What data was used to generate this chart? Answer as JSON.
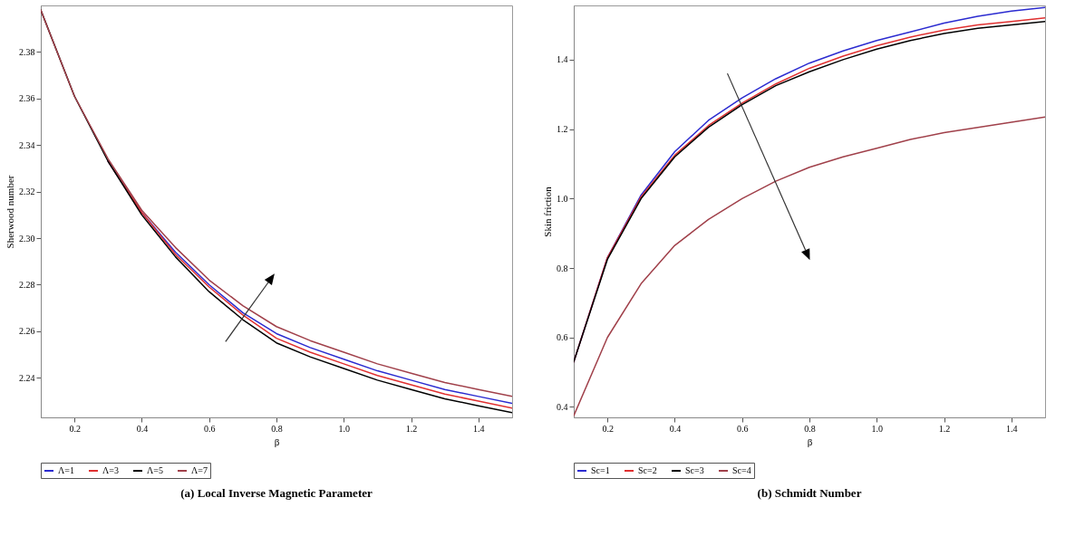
{
  "chart_data": [
    {
      "type": "line",
      "title": "(a) Local Inverse Magnetic Parameter",
      "xlabel": "β",
      "ylabel": "Sherwood number",
      "x": [
        0.1,
        0.2,
        0.3,
        0.4,
        0.5,
        0.6,
        0.7,
        0.8,
        0.9,
        1.0,
        1.1,
        1.2,
        1.3,
        1.4,
        1.5
      ],
      "xlim": [
        0.1,
        1.5
      ],
      "xticks": [
        0.2,
        0.4,
        0.6,
        0.8,
        {
          "value": 1,
          "label": "1.0"
        },
        1.2,
        1.4
      ],
      "ylim": [
        2.223,
        2.4
      ],
      "yticks": [
        2.24,
        2.26,
        2.28,
        {
          "value": 2.3,
          "label": "2.30"
        },
        2.32,
        2.34,
        2.36,
        2.38
      ],
      "legend": "bottom",
      "series": [
        {
          "name": "Λ=1",
          "color": "#2b2bd0",
          "values": [
            null,
            null,
            2.333,
            2.311,
            2.294,
            2.28,
            2.268,
            2.259,
            2.253,
            2.248,
            2.243,
            2.239,
            2.235,
            2.232,
            2.229
          ]
        },
        {
          "name": "Λ=3",
          "color": "#e03030",
          "values": [
            null,
            null,
            2.333,
            2.311,
            2.293,
            2.279,
            2.267,
            2.257,
            2.251,
            2.246,
            2.241,
            2.237,
            2.233,
            2.23,
            2.227
          ]
        },
        {
          "name": "Λ=5",
          "color": "#000000",
          "values": [
            2.398,
            2.361,
            2.333,
            2.31,
            2.292,
            2.277,
            2.265,
            2.255,
            2.249,
            2.244,
            2.239,
            2.235,
            2.231,
            2.228,
            2.225
          ]
        },
        {
          "name": "Λ=7",
          "color": "#a0404a",
          "values": [
            2.398,
            2.361,
            2.334,
            2.312,
            2.296,
            2.282,
            2.271,
            2.262,
            2.256,
            2.251,
            2.246,
            2.242,
            2.238,
            2.235,
            2.232
          ]
        }
      ]
    },
    {
      "type": "line",
      "title": "(b) Schmidt Number",
      "xlabel": "β",
      "ylabel": "Skin friction",
      "x": [
        0.1,
        0.2,
        0.3,
        0.4,
        0.5,
        0.6,
        0.7,
        0.8,
        0.9,
        1.0,
        1.1,
        1.2,
        1.3,
        1.4,
        1.5
      ],
      "xlim": [
        0.1,
        1.5
      ],
      "xticks": [
        0.2,
        0.4,
        0.6,
        0.8,
        {
          "value": 1,
          "label": "1.0"
        },
        1.2,
        1.4
      ],
      "ylim": [
        0.37,
        1.556
      ],
      "yticks": [
        0.4,
        0.6,
        0.8,
        {
          "value": 1,
          "label": "1.0"
        },
        1.2,
        1.4
      ],
      "legend": "bottom",
      "series": [
        {
          "name": "Sc=1",
          "color": "#2b2bd0",
          "values": [
            0.53,
            0.83,
            1.01,
            1.135,
            1.225,
            1.29,
            1.345,
            1.39,
            1.425,
            1.455,
            1.48,
            1.505,
            1.525,
            1.54,
            1.55
          ]
        },
        {
          "name": "Sc=2",
          "color": "#e03030",
          "values": [
            0.53,
            0.83,
            1.005,
            1.125,
            1.21,
            1.275,
            1.33,
            1.375,
            1.41,
            1.44,
            1.465,
            1.485,
            1.5,
            1.51,
            1.52
          ]
        },
        {
          "name": "Sc=3",
          "color": "#000000",
          "values": [
            0.53,
            0.825,
            1.0,
            1.12,
            1.205,
            1.27,
            1.325,
            1.365,
            1.4,
            1.43,
            1.455,
            1.475,
            1.49,
            1.5,
            1.51
          ]
        },
        {
          "name": "Sc=4",
          "color": "#a0404a",
          "values": [
            0.375,
            0.6,
            0.755,
            0.865,
            0.94,
            1.0,
            1.05,
            1.09,
            1.12,
            1.145,
            1.17,
            1.19,
            1.205,
            1.22,
            1.235
          ]
        }
      ]
    }
  ]
}
